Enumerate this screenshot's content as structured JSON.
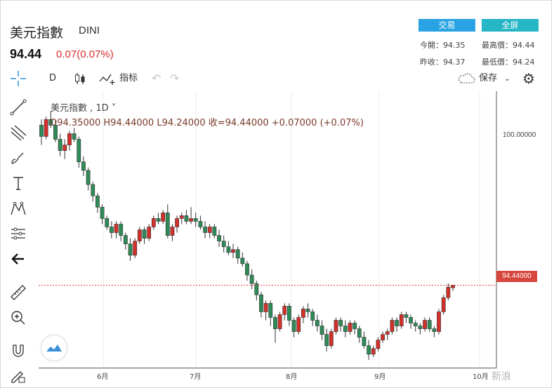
{
  "header": {
    "name": "美元指數",
    "symbol": "DINI",
    "price": "94.44",
    "change": "0.07(0.07%)",
    "trade_label": "交易",
    "fullscreen_label": "全屏",
    "stats": {
      "open_label": "今開：94.35",
      "high_label": "最高價：94.44",
      "prev_label": "昨收：94.37",
      "low_label": "最低價：94.24"
    }
  },
  "toolbar": {
    "interval": "D",
    "indicators_label": "指标",
    "save_label": "保存"
  },
  "legend": {
    "title": "美元指數 , 1D ˅",
    "ohlc": "O94.35000   H94.44000   L94.24000   收=94.44000   +0.07000 (+0.07%)"
  },
  "axis": {
    "y_top_label": "100.00000",
    "price_tag": "94.44000",
    "x_labels": [
      "6月",
      "7月",
      "8月",
      "9月",
      "10月"
    ]
  },
  "watermark": "新浪",
  "colors": {
    "up": "#d3302a",
    "down": "#2e8b57",
    "tag": "#d6463d"
  },
  "chart_data": {
    "type": "candlestick",
    "ylim": [
      91.5,
      101.3
    ],
    "current_price": 94.44,
    "candles": [
      [
        100.1,
        100.3,
        99.4,
        99.7
      ],
      [
        99.7,
        100.4,
        99.6,
        100.3
      ],
      [
        100.3,
        100.6,
        100.0,
        100.1
      ],
      [
        100.1,
        100.3,
        99.5,
        99.6
      ],
      [
        99.6,
        99.8,
        99.0,
        99.2
      ],
      [
        99.2,
        99.6,
        98.9,
        99.4
      ],
      [
        99.4,
        99.9,
        99.2,
        99.8
      ],
      [
        99.8,
        100.0,
        99.5,
        99.6
      ],
      [
        99.6,
        99.7,
        98.6,
        98.8
      ],
      [
        98.8,
        99.0,
        98.3,
        98.5
      ],
      [
        98.5,
        98.6,
        97.8,
        98.0
      ],
      [
        98.0,
        98.1,
        97.4,
        97.6
      ],
      [
        97.6,
        97.7,
        97.0,
        97.2
      ],
      [
        97.2,
        97.3,
        96.6,
        96.8
      ],
      [
        96.8,
        96.9,
        96.4,
        96.5
      ],
      [
        96.5,
        96.7,
        96.1,
        96.3
      ],
      [
        96.3,
        96.7,
        96.1,
        96.6
      ],
      [
        96.6,
        96.7,
        96.0,
        96.2
      ],
      [
        96.2,
        96.3,
        95.7,
        95.9
      ],
      [
        95.9,
        96.1,
        95.3,
        95.5
      ],
      [
        95.5,
        96.1,
        95.4,
        96.0
      ],
      [
        96.0,
        96.5,
        95.9,
        96.4
      ],
      [
        96.4,
        96.5,
        95.9,
        96.1
      ],
      [
        96.1,
        96.6,
        96.0,
        96.5
      ],
      [
        96.5,
        96.9,
        96.4,
        96.8
      ],
      [
        96.8,
        97.0,
        96.6,
        96.7
      ],
      [
        96.7,
        97.1,
        96.6,
        97.0
      ],
      [
        97.0,
        97.3,
        96.1,
        96.2
      ],
      [
        96.2,
        96.6,
        96.0,
        96.5
      ],
      [
        96.5,
        96.9,
        96.3,
        96.8
      ],
      [
        96.8,
        97.0,
        96.6,
        96.9
      ],
      [
        96.9,
        97.1,
        96.6,
        96.7
      ],
      [
        96.7,
        97.2,
        96.6,
        96.8
      ],
      [
        96.8,
        97.0,
        96.5,
        96.7
      ],
      [
        96.7,
        96.9,
        96.4,
        96.5
      ],
      [
        96.5,
        96.7,
        96.1,
        96.3
      ],
      [
        96.3,
        96.6,
        96.1,
        96.5
      ],
      [
        96.5,
        96.6,
        96.1,
        96.2
      ],
      [
        96.2,
        96.4,
        95.8,
        96.0
      ],
      [
        96.0,
        96.2,
        95.6,
        95.8
      ],
      [
        95.8,
        96.0,
        95.5,
        95.6
      ],
      [
        95.6,
        95.9,
        95.4,
        95.7
      ],
      [
        95.7,
        95.8,
        95.2,
        95.4
      ],
      [
        95.4,
        95.6,
        95.1,
        95.2
      ],
      [
        95.2,
        95.3,
        94.6,
        94.8
      ],
      [
        94.8,
        95.0,
        94.3,
        94.5
      ],
      [
        94.5,
        94.6,
        93.9,
        94.1
      ],
      [
        94.1,
        94.2,
        93.3,
        93.5
      ],
      [
        93.5,
        93.9,
        93.2,
        93.8
      ],
      [
        93.8,
        93.9,
        93.0,
        93.3
      ],
      [
        93.3,
        93.4,
        92.4,
        92.9
      ],
      [
        92.9,
        93.5,
        92.8,
        93.4
      ],
      [
        93.4,
        93.8,
        93.2,
        93.7
      ],
      [
        93.7,
        93.8,
        93.0,
        93.2
      ],
      [
        93.2,
        93.3,
        92.6,
        92.8
      ],
      [
        92.8,
        93.4,
        92.7,
        93.3
      ],
      [
        93.3,
        93.7,
        93.1,
        93.6
      ],
      [
        93.6,
        93.8,
        93.3,
        93.5
      ],
      [
        93.5,
        93.6,
        93.0,
        93.2
      ],
      [
        93.2,
        93.4,
        92.8,
        93.0
      ],
      [
        93.0,
        93.2,
        92.5,
        92.7
      ],
      [
        92.7,
        92.9,
        92.1,
        92.3
      ],
      [
        92.3,
        92.9,
        92.2,
        92.8
      ],
      [
        92.8,
        93.3,
        92.7,
        93.2
      ],
      [
        93.2,
        93.3,
        92.8,
        93.0
      ],
      [
        93.0,
        93.2,
        92.6,
        92.8
      ],
      [
        92.8,
        93.2,
        92.7,
        93.1
      ],
      [
        93.1,
        93.2,
        92.7,
        92.9
      ],
      [
        92.9,
        93.0,
        92.4,
        92.6
      ],
      [
        92.6,
        92.8,
        92.2,
        92.3
      ],
      [
        92.3,
        92.5,
        91.8,
        92.0
      ],
      [
        92.0,
        92.3,
        91.9,
        92.2
      ],
      [
        92.2,
        92.6,
        92.1,
        92.5
      ],
      [
        92.5,
        92.8,
        92.4,
        92.7
      ],
      [
        92.7,
        92.9,
        92.5,
        92.8
      ],
      [
        92.8,
        93.3,
        92.7,
        93.2
      ],
      [
        93.2,
        93.3,
        92.8,
        93.0
      ],
      [
        93.0,
        93.5,
        92.9,
        93.4
      ],
      [
        93.4,
        93.5,
        93.1,
        93.3
      ],
      [
        93.3,
        93.4,
        92.9,
        93.1
      ],
      [
        93.1,
        93.2,
        92.8,
        93.0
      ],
      [
        93.0,
        93.1,
        92.7,
        92.9
      ],
      [
        92.9,
        93.3,
        92.8,
        93.2
      ],
      [
        93.2,
        93.3,
        92.8,
        92.9
      ],
      [
        92.9,
        93.0,
        92.6,
        92.8
      ],
      [
        92.8,
        93.6,
        92.7,
        93.5
      ],
      [
        93.5,
        94.1,
        93.4,
        94.0
      ],
      [
        94.0,
        94.5,
        93.9,
        94.37
      ],
      [
        94.35,
        94.44,
        94.24,
        94.44
      ]
    ]
  }
}
